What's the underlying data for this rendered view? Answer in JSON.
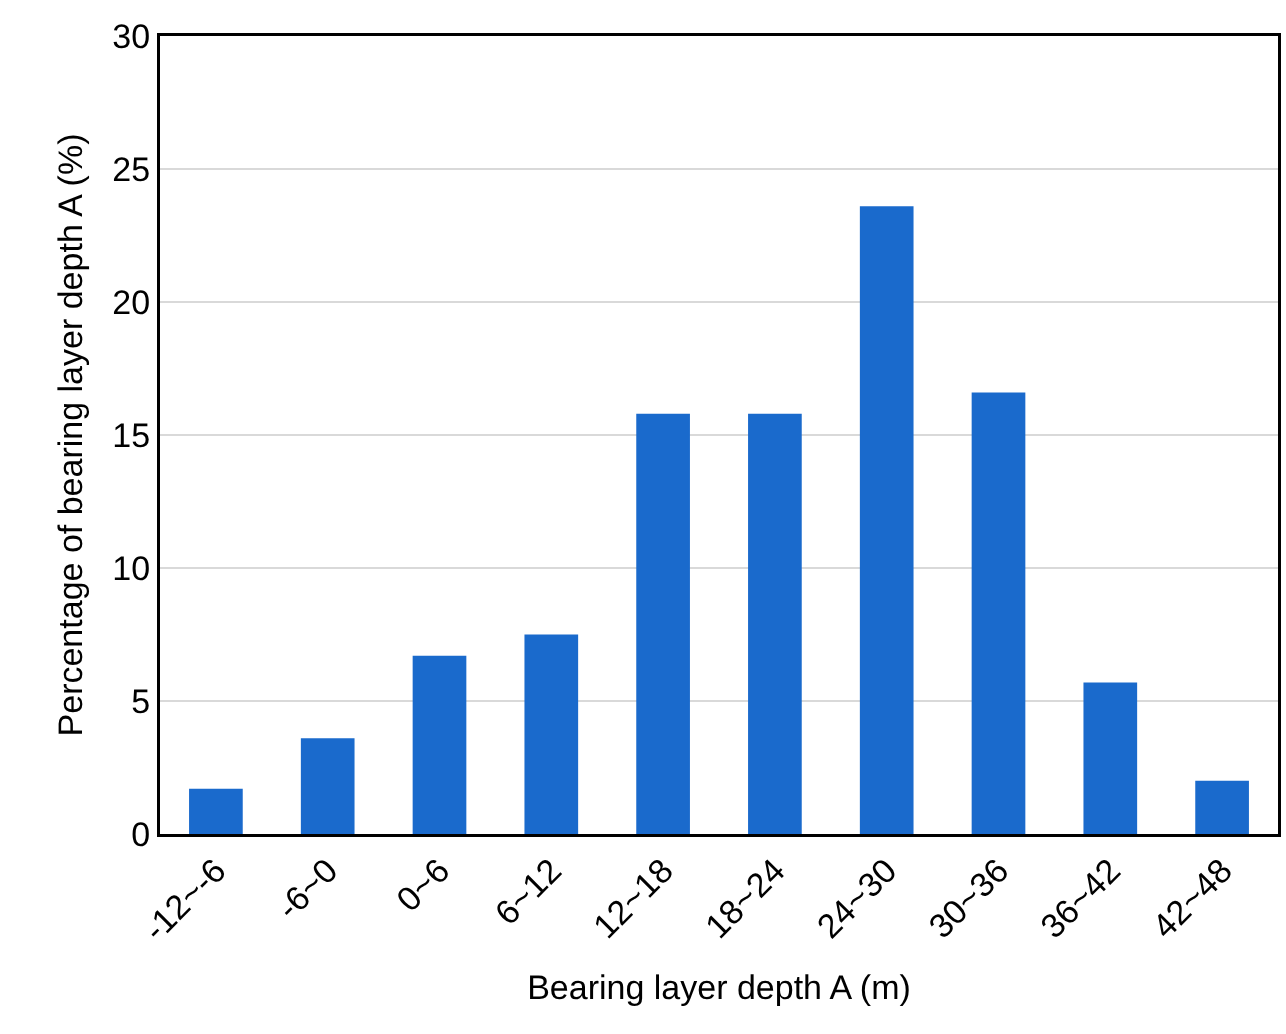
{
  "chart_data": {
    "type": "bar",
    "xlabel": "Bearing layer depth A (m)",
    "ylabel": "Percentage of bearing layer depth A (%)",
    "categories": [
      "-12~-6",
      "-6~0",
      "0~6",
      "6~12",
      "12~18",
      "18~24",
      "24~30",
      "30~36",
      "36~42",
      "42~48"
    ],
    "values": [
      1.7,
      3.6,
      6.7,
      7.5,
      15.8,
      15.8,
      23.6,
      16.6,
      5.7,
      2.0
    ],
    "color": "#1a6acc",
    "ylim": [
      0,
      30
    ],
    "yticks": [
      0,
      5,
      10,
      15,
      20,
      25,
      30
    ],
    "grid": "y"
  }
}
